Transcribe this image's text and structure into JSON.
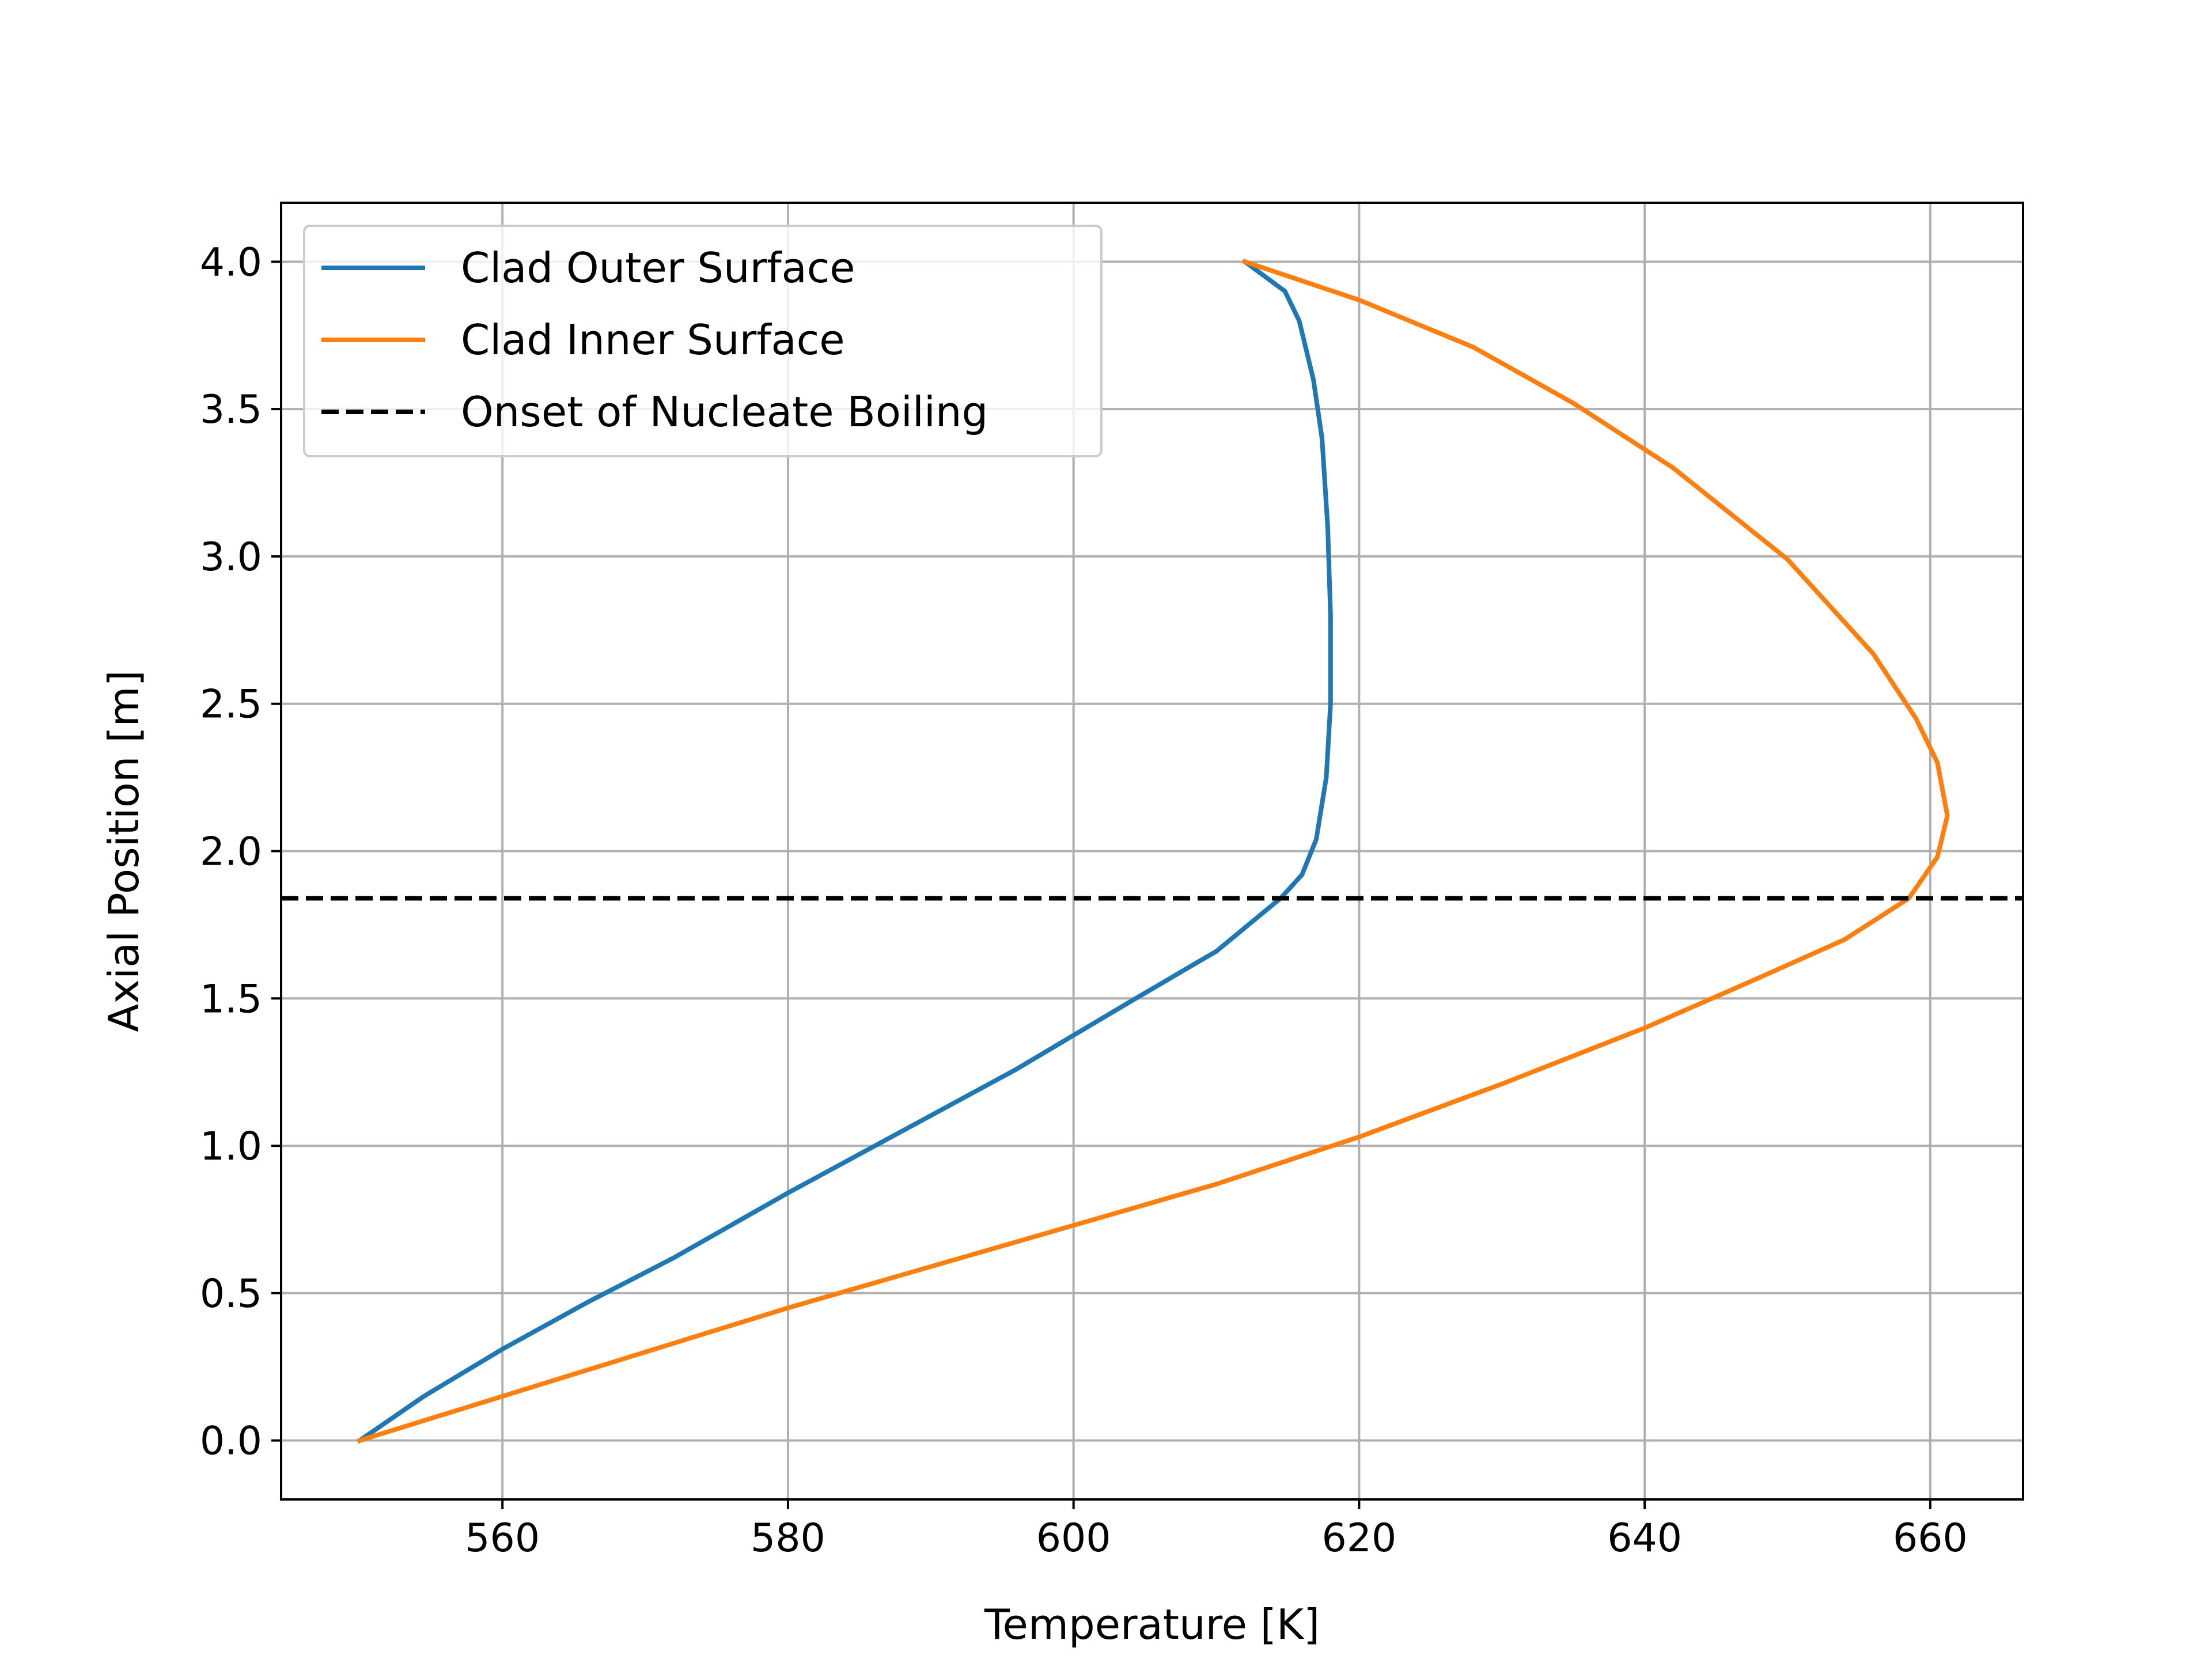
{
  "chart_data": {
    "type": "line",
    "xlabel": "Temperature  [K]",
    "ylabel": "Axial Position  [m]",
    "xlim": [
      544.5,
      666.5
    ],
    "ylim": [
      -0.2,
      4.2
    ],
    "xticks": [
      560,
      580,
      600,
      620,
      640,
      660
    ],
    "xtick_labels": [
      "560",
      "580",
      "600",
      "620",
      "640",
      "660"
    ],
    "yticks": [
      0.0,
      0.5,
      1.0,
      1.5,
      2.0,
      2.5,
      3.0,
      3.5,
      4.0
    ],
    "ytick_labels": [
      "0.0",
      "0.5",
      "1.0",
      "1.5",
      "2.0",
      "2.5",
      "3.0",
      "3.5",
      "4.0"
    ],
    "grid": true,
    "legend_position": "top-left",
    "series": [
      {
        "name": "Clad Outer Surface",
        "color": "#1f77b4",
        "style": "solid",
        "points": [
          [
            550.0,
            0.0
          ],
          [
            554.5,
            0.15
          ],
          [
            560.0,
            0.31
          ],
          [
            566.0,
            0.47
          ],
          [
            572.0,
            0.62
          ],
          [
            580.0,
            0.84
          ],
          [
            588.0,
            1.05
          ],
          [
            596.0,
            1.26
          ],
          [
            604.0,
            1.49
          ],
          [
            610.0,
            1.66
          ],
          [
            614.5,
            1.84
          ],
          [
            616.0,
            1.92
          ],
          [
            617.0,
            2.04
          ],
          [
            617.7,
            2.25
          ],
          [
            618.0,
            2.5
          ],
          [
            618.0,
            2.8
          ],
          [
            617.8,
            3.1
          ],
          [
            617.4,
            3.4
          ],
          [
            616.8,
            3.6
          ],
          [
            615.8,
            3.8
          ],
          [
            614.8,
            3.9
          ],
          [
            612.0,
            4.0
          ]
        ]
      },
      {
        "name": "Clad Inner Surface",
        "color": "#ff7f0e",
        "style": "solid",
        "points": [
          [
            550.0,
            0.0
          ],
          [
            560.0,
            0.15
          ],
          [
            570.0,
            0.3
          ],
          [
            580.0,
            0.45
          ],
          [
            590.0,
            0.59
          ],
          [
            600.0,
            0.73
          ],
          [
            610.0,
            0.87
          ],
          [
            620.0,
            1.03
          ],
          [
            630.0,
            1.21
          ],
          [
            640.0,
            1.4
          ],
          [
            648.0,
            1.57
          ],
          [
            654.0,
            1.7
          ],
          [
            658.5,
            1.84
          ],
          [
            660.5,
            1.98
          ],
          [
            661.2,
            2.12
          ],
          [
            660.5,
            2.3
          ],
          [
            659.0,
            2.45
          ],
          [
            656.0,
            2.67
          ],
          [
            650.0,
            2.99
          ],
          [
            642.0,
            3.3
          ],
          [
            635.0,
            3.52
          ],
          [
            628.0,
            3.71
          ],
          [
            620.0,
            3.87
          ],
          [
            612.0,
            4.0
          ]
        ]
      },
      {
        "name": "Onset of Nucleate Boiling",
        "color": "#000000",
        "style": "dashed",
        "y": 1.84
      }
    ]
  }
}
